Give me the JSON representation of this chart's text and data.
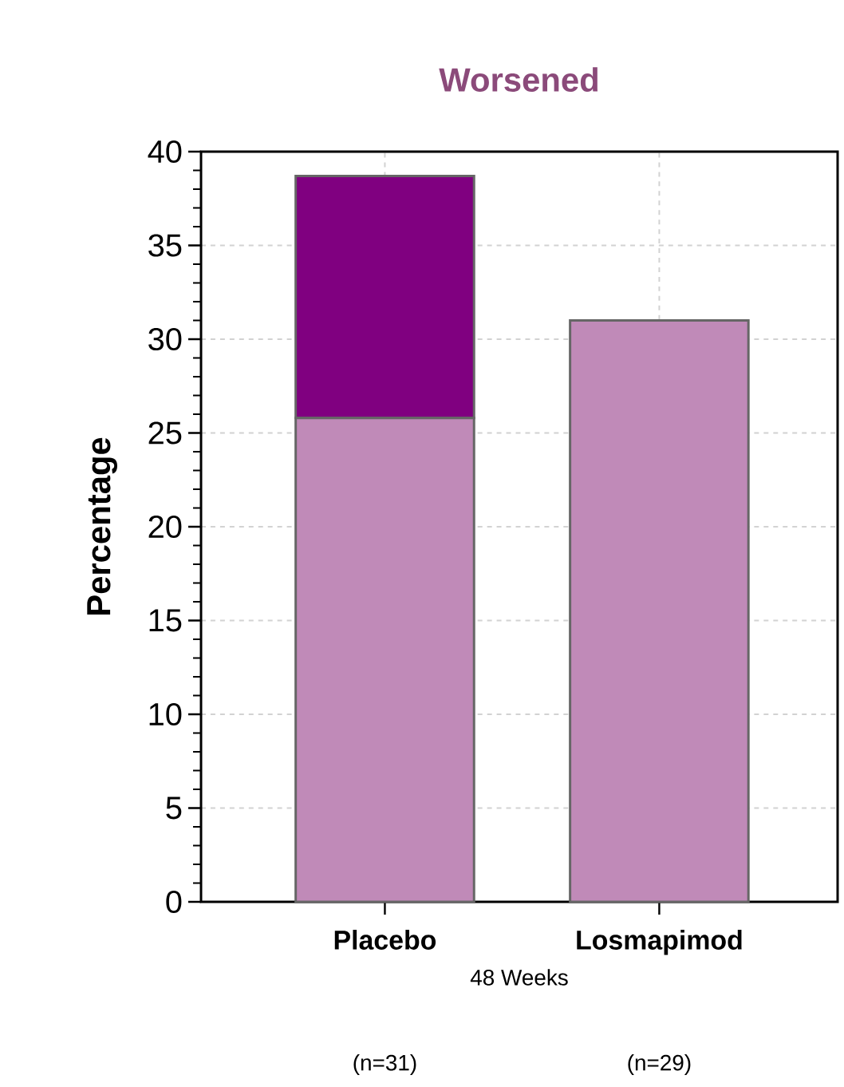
{
  "chart_data": {
    "type": "bar",
    "title": "Worsened",
    "ylabel": "Percentage",
    "xlabel": "48 Weeks",
    "categories": [
      "Placebo",
      "Losmapimod"
    ],
    "series": [
      {
        "color": "#c08ab8",
        "values": [
          25.8,
          31.0
        ]
      },
      {
        "color": "#800080",
        "values": [
          12.9,
          null
        ]
      }
    ],
    "stacked": true,
    "ylim": [
      0,
      40
    ],
    "yticks": [
      0,
      5,
      10,
      15,
      20,
      25,
      30,
      35,
      40
    ],
    "grid": true,
    "annotations": [
      "(n=31)",
      "(n=29)"
    ]
  }
}
